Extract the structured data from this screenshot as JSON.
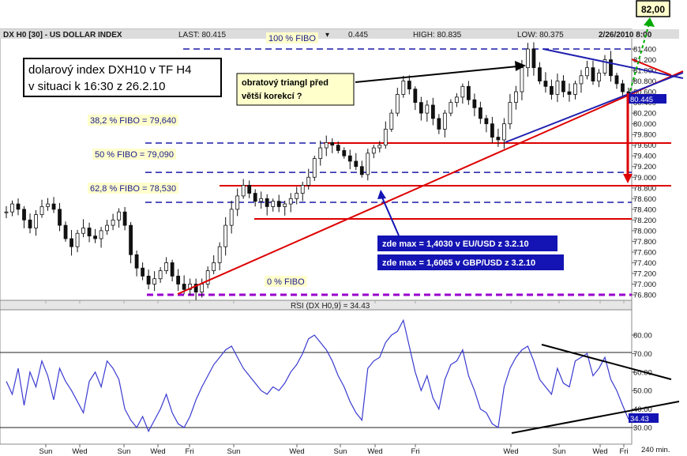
{
  "header": {
    "symbol": "DX H0 [30] - US DOLLAR INDEX",
    "last": "LAST: 80.415",
    "change": "0.445",
    "high": "HIGH: 80.835",
    "low": "LOW: 80.375",
    "datetime": "2/26/2010 8:00"
  },
  "annotations": {
    "title_line1": "dolarový index DXH10 v TF H4",
    "title_line2": "v situaci k 16:30 z 26.2.10",
    "triangle_line1": "obratový triangl před",
    "triangle_line2": "větší korekcí ?",
    "note_eur": "zde max = 1,4030 v EU/USD z 3.2.10",
    "note_gbp": "zde max = 1,6065 v GBP/USD z 3.2.10",
    "target": "82,00",
    "current_price": "80.445",
    "rsi_label": "RSI (DX H0,9) = 34.43",
    "rsi_current": "34.43",
    "timeframe": "240 min."
  },
  "fibo": [
    {
      "label": "100 % FIBO",
      "value": 81.4
    },
    {
      "label": "38,2 % FIBO  = 79,640",
      "value": 79.64
    },
    {
      "label": "50 % FIBO  = 79,090",
      "value": 79.09
    },
    {
      "label": "62,8 % FIBO  = 78,530",
      "value": 78.53
    },
    {
      "label": "0 % FIBO",
      "value": 76.8
    }
  ],
  "colors": {
    "candle": "#111111",
    "fibo_line": "#1a1aa8",
    "support": "#dd0000",
    "trendline": "#2020b0",
    "rsi_line": "#3a3ad0",
    "label_bg": "#ffffcc",
    "note_bg": "#1414b4",
    "zero_fibo": "#9900cc",
    "target_arrow": "#00aa00"
  },
  "chart_data": [
    {
      "type": "line",
      "title": "DX H0 [30] - US DOLLAR INDEX",
      "ylim": [
        76.6,
        81.6
      ],
      "y_ticks": [
        81.4,
        81.2,
        81.0,
        80.8,
        80.6,
        80.4,
        80.2,
        80.0,
        79.8,
        79.6,
        79.4,
        79.2,
        79.0,
        78.8,
        78.6,
        78.4,
        78.2,
        78.0,
        77.8,
        77.6,
        77.4,
        77.2,
        77.0,
        76.8
      ],
      "y_tick_labels": [
        "81.400",
        "81.200",
        "81.000",
        "80.800",
        "80.600",
        "80.400",
        "80.200",
        "80.000",
        "79.800",
        "79.600",
        "79.400",
        "79.200",
        "79.000",
        "78.800",
        "78.600",
        "78.400",
        "78.200",
        "78.000",
        "77.800",
        "77.600",
        "77.400",
        "77.200",
        "77.000",
        "76.800"
      ],
      "x_tick_labels": [
        "Sun",
        "Wed",
        "Sun",
        "Wed",
        "Fri",
        "Sun",
        "Wed",
        "Sun",
        "Wed",
        "Fri",
        "Wed",
        "Sun",
        "Wed",
        "Fri"
      ],
      "series": [
        {
          "values": [
            78.35,
            78.5,
            78.4,
            78.2,
            78.05,
            78.3,
            78.45,
            78.5,
            78.4,
            78.1,
            77.85,
            77.7,
            77.95,
            78.05,
            77.9,
            77.85,
            78.0,
            78.1,
            78.2,
            78.35,
            78.1,
            77.55,
            77.3,
            77.15,
            77.0,
            77.1,
            77.25,
            77.4,
            77.15,
            77.0,
            76.9,
            77.0,
            76.85,
            77.0,
            77.25,
            77.4,
            77.7,
            78.1,
            78.4,
            78.65,
            78.85,
            78.7,
            78.55,
            78.6,
            78.45,
            78.55,
            78.45,
            78.5,
            78.6,
            78.7,
            78.85,
            79.0,
            79.35,
            79.55,
            79.65,
            79.6,
            79.5,
            79.4,
            79.3,
            79.2,
            79.05,
            79.45,
            79.55,
            79.6,
            79.9,
            80.2,
            80.55,
            80.8,
            80.65,
            80.4,
            80.2,
            80.35,
            80.1,
            79.9,
            80.2,
            80.4,
            80.5,
            80.7,
            80.45,
            80.3,
            80.1,
            80.0,
            79.75,
            79.7,
            80.0,
            80.4,
            80.6,
            81.05,
            81.4,
            81.05,
            80.8,
            80.7,
            80.55,
            80.8,
            80.6,
            80.55,
            80.75,
            80.9,
            81.05,
            80.8,
            80.95,
            81.2,
            80.9,
            80.75,
            80.6,
            80.45
          ]
        }
      ]
    },
    {
      "type": "line",
      "title": "RSI (DX H0,9) = 34.43",
      "ylim": [
        25,
        90
      ],
      "y_ticks": [
        80,
        70,
        60,
        50,
        40,
        30
      ],
      "y_tick_labels": [
        "80.00",
        "70.00",
        "60.00",
        "50.00",
        "40.00",
        "30.00"
      ],
      "series": [
        {
          "values": [
            55,
            48,
            62,
            42,
            60,
            52,
            66,
            58,
            45,
            62,
            55,
            50,
            44,
            38,
            55,
            60,
            52,
            66,
            62,
            56,
            40,
            34,
            30,
            36,
            28,
            34,
            40,
            48,
            38,
            32,
            30,
            36,
            45,
            52,
            58,
            64,
            68,
            72,
            74,
            68,
            62,
            58,
            54,
            50,
            48,
            52,
            50,
            54,
            60,
            64,
            70,
            78,
            80,
            76,
            72,
            66,
            58,
            52,
            44,
            38,
            34,
            62,
            66,
            68,
            76,
            80,
            82,
            88,
            74,
            60,
            50,
            58,
            46,
            40,
            56,
            64,
            66,
            72,
            58,
            50,
            40,
            38,
            32,
            30,
            52,
            62,
            68,
            72,
            74,
            66,
            56,
            52,
            48,
            62,
            54,
            52,
            66,
            68,
            70,
            58,
            62,
            68,
            56,
            50,
            42,
            34.43
          ]
        }
      ]
    }
  ]
}
